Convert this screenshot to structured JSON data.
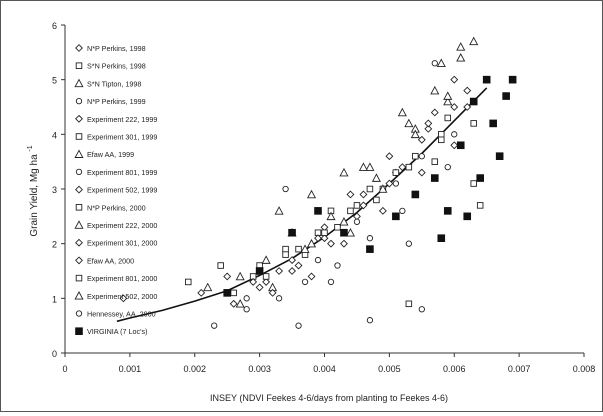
{
  "chart_data": {
    "type": "scatter",
    "xlabel": "INSEY (NDVI Feekes 4-6/days from planting to Feekes 4-6)",
    "ylabel": "Grain Yield, Mg ha",
    "ylabel_sup": "-1",
    "xlim": [
      0,
      0.008
    ],
    "ylim": [
      0,
      6
    ],
    "x_ticks": [
      "0",
      "0.001",
      "0.002",
      "0.003",
      "0.004",
      "0.005",
      "0.006",
      "0.007",
      "0.008"
    ],
    "y_ticks": [
      "0",
      "1",
      "2",
      "3",
      "4",
      "5",
      "6"
    ],
    "grid": false,
    "legend_position": "left",
    "series": [
      {
        "name": "N*P Perkins, 1998",
        "marker": "diamond-open",
        "values": [
          [
            0.0009,
            1.0
          ],
          [
            0.0021,
            1.1
          ],
          [
            0.0026,
            0.9
          ],
          [
            0.0031,
            1.3
          ],
          [
            0.0036,
            1.6
          ],
          [
            0.0041,
            2.0
          ],
          [
            0.0046,
            2.7
          ],
          [
            0.0051,
            3.3
          ],
          [
            0.0056,
            4.1
          ],
          [
            0.006,
            5.0
          ]
        ]
      },
      {
        "name": "S*N Perkins, 1998",
        "marker": "square-open",
        "values": [
          [
            0.0019,
            1.3
          ],
          [
            0.0024,
            1.6
          ],
          [
            0.0029,
            1.4
          ],
          [
            0.0034,
            1.9
          ],
          [
            0.0039,
            2.2
          ],
          [
            0.0044,
            2.6
          ],
          [
            0.0049,
            3.0
          ],
          [
            0.0054,
            3.6
          ],
          [
            0.0059,
            4.3
          ]
        ]
      },
      {
        "name": "S*N Tipton, 1998",
        "marker": "triangle-open",
        "values": [
          [
            0.0022,
            1.2
          ],
          [
            0.0027,
            1.4
          ],
          [
            0.0033,
            2.6
          ],
          [
            0.0038,
            2.9
          ],
          [
            0.0043,
            3.3
          ],
          [
            0.0047,
            3.4
          ],
          [
            0.0053,
            4.2
          ],
          [
            0.0058,
            5.3
          ],
          [
            0.0061,
            5.6
          ],
          [
            0.0063,
            5.7
          ]
        ]
      },
      {
        "name": "N*P Perkins, 1999",
        "marker": "circle-open",
        "values": [
          [
            0.0023,
            0.5
          ],
          [
            0.0028,
            0.8
          ],
          [
            0.0033,
            1.0
          ],
          [
            0.0036,
            0.5
          ],
          [
            0.0041,
            1.3
          ],
          [
            0.0047,
            2.1
          ],
          [
            0.0052,
            2.6
          ],
          [
            0.0057,
            5.3
          ]
        ]
      },
      {
        "name": "Experiment 222, 1999",
        "marker": "diamond-open",
        "values": [
          [
            0.0025,
            1.4
          ],
          [
            0.003,
            1.2
          ],
          [
            0.0035,
            1.7
          ],
          [
            0.004,
            2.1
          ],
          [
            0.0045,
            2.5
          ],
          [
            0.005,
            3.1
          ],
          [
            0.0055,
            3.9
          ],
          [
            0.006,
            4.5
          ]
        ]
      },
      {
        "name": "Experiment 301, 1999",
        "marker": "square-open",
        "values": [
          [
            0.0026,
            1.1
          ],
          [
            0.0031,
            1.4
          ],
          [
            0.0037,
            1.8
          ],
          [
            0.0042,
            2.3
          ],
          [
            0.0048,
            2.8
          ],
          [
            0.0053,
            3.4
          ],
          [
            0.0058,
            4.0
          ],
          [
            0.0063,
            4.2
          ]
        ]
      },
      {
        "name": "Efaw AA, 1999",
        "marker": "triangle-open",
        "values": [
          [
            0.0027,
            0.9
          ],
          [
            0.0032,
            1.2
          ],
          [
            0.0038,
            2.0
          ],
          [
            0.0044,
            2.2
          ],
          [
            0.0049,
            3.0
          ],
          [
            0.0054,
            4.1
          ],
          [
            0.0059,
            4.6
          ]
        ]
      },
      {
        "name": "Experiment 801, 1999",
        "marker": "circle-open",
        "values": [
          [
            0.0028,
            1.0
          ],
          [
            0.0034,
            3.0
          ],
          [
            0.0039,
            1.7
          ],
          [
            0.0045,
            2.4
          ],
          [
            0.0051,
            3.1
          ],
          [
            0.0055,
            3.6
          ],
          [
            0.006,
            4.0
          ]
        ]
      },
      {
        "name": "Experiment 502, 1999",
        "marker": "diamond-open",
        "values": [
          [
            0.0029,
            1.3
          ],
          [
            0.0035,
            1.5
          ],
          [
            0.004,
            2.3
          ],
          [
            0.0046,
            2.9
          ],
          [
            0.0052,
            3.4
          ],
          [
            0.0057,
            4.4
          ],
          [
            0.0062,
            4.8
          ]
        ]
      },
      {
        "name": "N*P Perkins, 2000",
        "marker": "square-open",
        "values": [
          [
            0.003,
            1.6
          ],
          [
            0.0036,
            1.9
          ],
          [
            0.0041,
            2.6
          ],
          [
            0.0047,
            3.0
          ],
          [
            0.0053,
            0.9
          ],
          [
            0.0058,
            3.9
          ],
          [
            0.0064,
            2.7
          ]
        ]
      },
      {
        "name": "Experiment 222, 2000",
        "marker": "triangle-open",
        "values": [
          [
            0.0031,
            1.7
          ],
          [
            0.0037,
            1.9
          ],
          [
            0.0043,
            2.4
          ],
          [
            0.0048,
            3.2
          ],
          [
            0.0054,
            4.0
          ],
          [
            0.0059,
            4.7
          ],
          [
            0.0061,
            5.4
          ]
        ]
      },
      {
        "name": "Experiment 301, 2000",
        "marker": "diamond-open",
        "values": [
          [
            0.0032,
            1.1
          ],
          [
            0.0038,
            1.4
          ],
          [
            0.0043,
            2.0
          ],
          [
            0.0049,
            2.6
          ],
          [
            0.0055,
            3.3
          ],
          [
            0.006,
            3.8
          ]
        ]
      },
      {
        "name": "Efaw AA, 2000",
        "marker": "diamond-open",
        "values": [
          [
            0.0033,
            1.5
          ],
          [
            0.0039,
            2.1
          ],
          [
            0.0044,
            2.9
          ],
          [
            0.005,
            3.6
          ],
          [
            0.0056,
            4.2
          ],
          [
            0.0062,
            4.5
          ]
        ]
      },
      {
        "name": "Experiment 801, 2000",
        "marker": "square-open",
        "values": [
          [
            0.0034,
            1.8
          ],
          [
            0.004,
            2.2
          ],
          [
            0.0045,
            2.7
          ],
          [
            0.0051,
            3.3
          ],
          [
            0.0057,
            3.5
          ],
          [
            0.0063,
            3.1
          ]
        ]
      },
      {
        "name": "Experiment 502, 2000",
        "marker": "triangle-open",
        "values": [
          [
            0.0035,
            2.2
          ],
          [
            0.0041,
            2.5
          ],
          [
            0.0046,
            3.4
          ],
          [
            0.0052,
            4.4
          ],
          [
            0.0057,
            4.8
          ]
        ]
      },
      {
        "name": "Hennessey, AA, 2000",
        "marker": "circle-open",
        "values": [
          [
            0.0037,
            1.3
          ],
          [
            0.0042,
            1.6
          ],
          [
            0.0047,
            0.6
          ],
          [
            0.0053,
            2.0
          ],
          [
            0.0055,
            0.8
          ],
          [
            0.0059,
            3.4
          ]
        ]
      },
      {
        "name": "VIRGINIA (7 Loc's)",
        "marker": "square-filled",
        "values": [
          [
            0.0025,
            1.1
          ],
          [
            0.003,
            1.5
          ],
          [
            0.0035,
            2.2
          ],
          [
            0.0039,
            2.6
          ],
          [
            0.0043,
            2.2
          ],
          [
            0.0047,
            1.9
          ],
          [
            0.0051,
            2.5
          ],
          [
            0.0054,
            2.9
          ],
          [
            0.0057,
            3.2
          ],
          [
            0.0059,
            2.6
          ],
          [
            0.0061,
            3.8
          ],
          [
            0.0063,
            4.6
          ],
          [
            0.0064,
            3.2
          ],
          [
            0.0065,
            5.0
          ],
          [
            0.0066,
            4.2
          ],
          [
            0.0067,
            3.6
          ],
          [
            0.0068,
            4.7
          ],
          [
            0.0069,
            5.0
          ],
          [
            0.0062,
            2.5
          ],
          [
            0.0058,
            2.1
          ]
        ]
      }
    ],
    "fit_curve": [
      [
        0.0008,
        0.58
      ],
      [
        0.001,
        0.64
      ],
      [
        0.0015,
        0.78
      ],
      [
        0.002,
        0.95
      ],
      [
        0.0025,
        1.14
      ],
      [
        0.003,
        1.42
      ],
      [
        0.0035,
        1.73
      ],
      [
        0.004,
        2.12
      ],
      [
        0.0045,
        2.57
      ],
      [
        0.005,
        3.1
      ],
      [
        0.0055,
        3.65
      ],
      [
        0.006,
        4.25
      ],
      [
        0.0065,
        4.85
      ]
    ]
  }
}
